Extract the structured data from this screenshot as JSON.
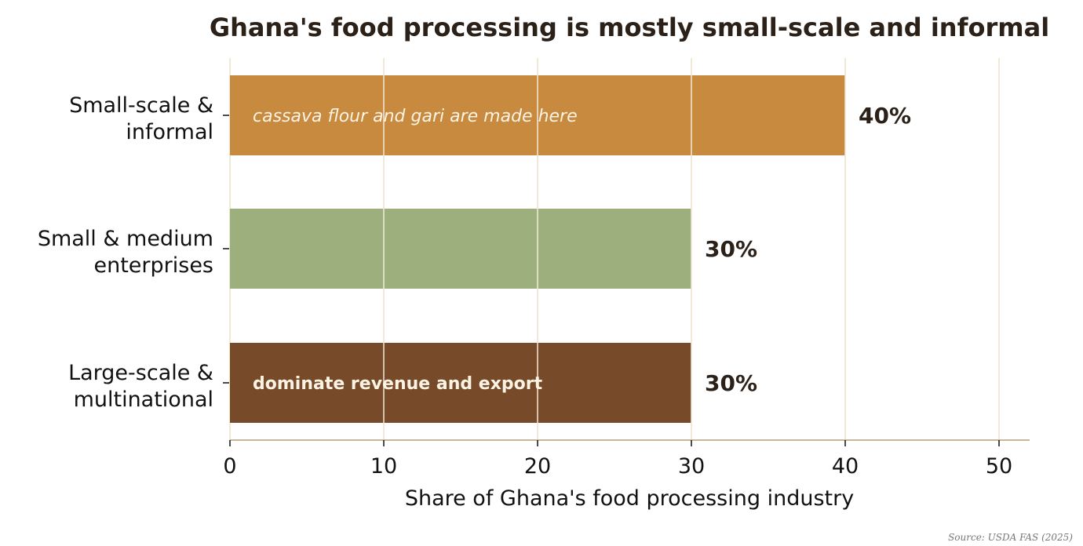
{
  "chart_data": {
    "type": "bar",
    "orientation": "horizontal",
    "title": "Ghana's food processing is mostly small-scale and informal",
    "xlabel": "Share of Ghana's food processing industry",
    "ylabel": "",
    "xlim": [
      0,
      52
    ],
    "x_ticks": [
      0,
      10,
      20,
      30,
      40,
      50
    ],
    "grid": "vertical",
    "categories": [
      {
        "line1": "Small-scale &",
        "line2": "informal"
      },
      {
        "line1": "Small & medium",
        "line2": "enterprises"
      },
      {
        "line1": "Large-scale &",
        "line2": "multinational"
      }
    ],
    "values": [
      40,
      30,
      30
    ],
    "value_labels": [
      "40%",
      "30%",
      "30%"
    ],
    "colors": [
      "#c88a3e",
      "#9daf7d",
      "#774b2a"
    ],
    "annotations": [
      {
        "bar": 0,
        "text": "cassava flour and gari are made here",
        "style": "italic"
      },
      {
        "bar": 2,
        "text": "dominate revenue and export",
        "style": "bold"
      }
    ],
    "source": "Source: USDA FAS (2025)"
  }
}
